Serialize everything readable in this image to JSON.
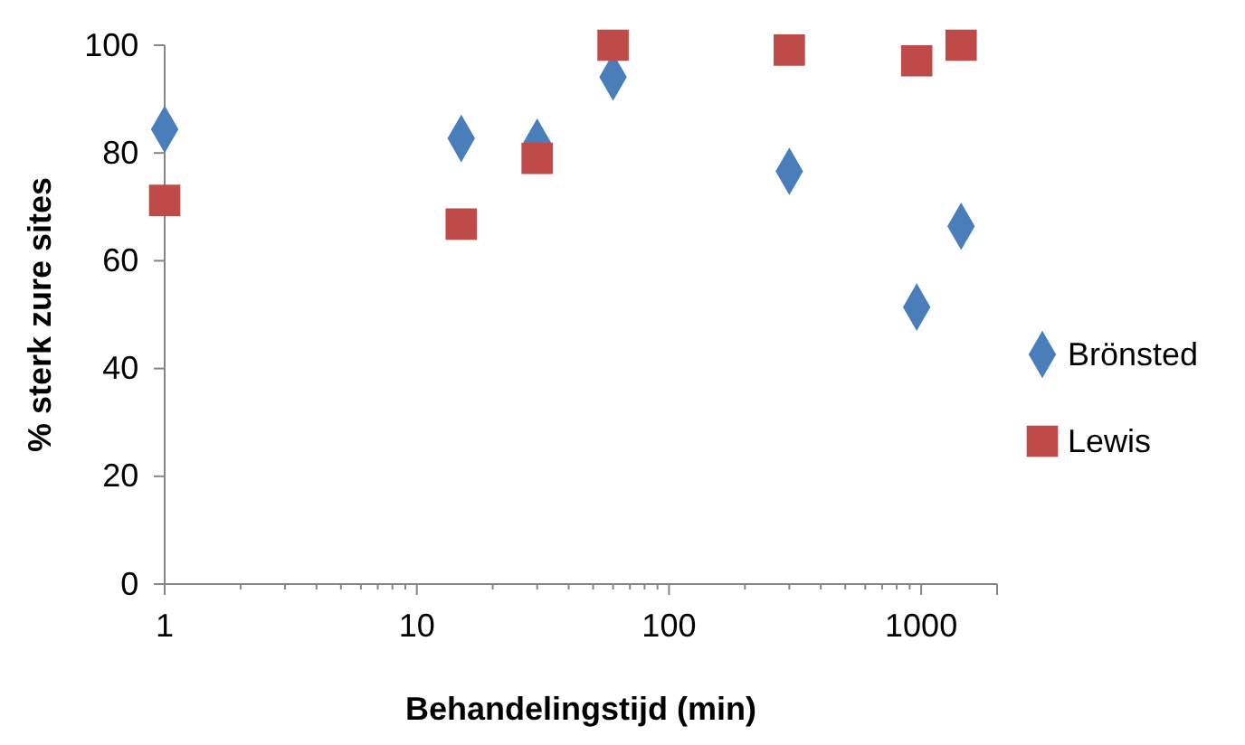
{
  "chart_data": {
    "type": "scatter",
    "xlabel": "Behandelingstijd (min)",
    "ylabel": "% sterk zure sites",
    "log": "x",
    "xlim": [
      1,
      2000
    ],
    "xticks": [
      1,
      10,
      100,
      1000
    ],
    "ylim": [
      0,
      100
    ],
    "yticks": [
      0,
      20,
      40,
      60,
      80,
      100
    ],
    "grid": false,
    "legend": "right",
    "series": [
      {
        "name": "Brönsted",
        "color": "#4a7ebb",
        "marker": "diamond",
        "x": [
          1,
          15,
          30,
          60,
          300,
          960,
          1440
        ],
        "values": [
          84.4,
          82.7,
          82,
          94.1,
          76.6,
          51.4,
          66.4
        ]
      },
      {
        "name": "Lewis",
        "color": "#be4b48",
        "marker": "square",
        "x": [
          1,
          15,
          30,
          60,
          300,
          960,
          1440
        ],
        "values": [
          71.2,
          66.8,
          79,
          100,
          99.1,
          97.1,
          100
        ]
      }
    ]
  }
}
